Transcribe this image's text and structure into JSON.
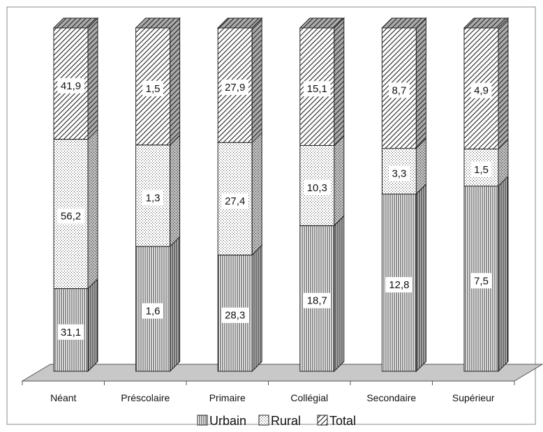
{
  "chart_data": {
    "type": "bar",
    "stacked": true,
    "normalized_to_100_percent": true,
    "three_d": true,
    "grid": false,
    "categories": [
      "Néant",
      "Préscolaire",
      "Primaire",
      "Collégial",
      "Secondaire",
      "Supérieur"
    ],
    "series": [
      {
        "name": "Urbain",
        "values": [
          31.1,
          1.6,
          28.3,
          18.7,
          12.8,
          7.5
        ],
        "value_labels": [
          "31,1",
          "1,6",
          "28,3",
          "18,7",
          "12,8",
          "7,5"
        ],
        "pattern": "vertical-lines"
      },
      {
        "name": "Rural",
        "values": [
          56.2,
          1.3,
          27.4,
          10.3,
          3.3,
          1.5
        ],
        "value_labels": [
          "56,2",
          "1,3",
          "27,4",
          "10,3",
          "3,3",
          "1,5"
        ],
        "pattern": "dots"
      },
      {
        "name": "Total",
        "values": [
          41.9,
          1.5,
          27.9,
          15.1,
          8.7,
          4.9
        ],
        "value_labels": [
          "41,9",
          "1,5",
          "27,9",
          "15,1",
          "8,7",
          "4,9"
        ],
        "pattern": "diagonal-lines"
      }
    ],
    "legend": {
      "position": "bottom",
      "entries": [
        "Urbain",
        "Rural",
        "Total"
      ]
    },
    "colors": {
      "ink": "#222222",
      "floor": "#c8c8c8",
      "label_bg": "#ffffff"
    }
  }
}
